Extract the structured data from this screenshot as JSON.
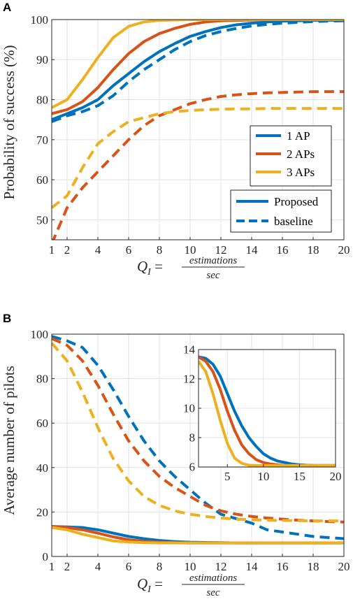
{
  "colors": {
    "ap1": "#0072BD",
    "ap2": "#D95319",
    "ap3": "#EDB120"
  },
  "chart_data": [
    {
      "panel": "A",
      "type": "line",
      "ylabel": "Probability of success (%)",
      "xlabel_prefix": "Q",
      "xlabel_subscript": "I",
      "xlabel_numerator": "estimations",
      "xlabel_denominator": "sec",
      "xlim": [
        1,
        20
      ],
      "ylim": [
        45,
        100
      ],
      "xticks": [
        1,
        2,
        4,
        6,
        8,
        10,
        12,
        14,
        16,
        18,
        20
      ],
      "yticks": [
        50,
        60,
        70,
        80,
        90,
        100
      ],
      "grid": true,
      "legend_colors": {
        "position": "lower-right",
        "entries": [
          "1 AP",
          "2 APs",
          "3 APs"
        ]
      },
      "legend_styles": {
        "position": "lower-right",
        "entries": [
          "Proposed",
          "baseline"
        ]
      },
      "x": [
        1,
        2,
        3,
        4,
        5,
        6,
        7,
        8,
        9,
        10,
        11,
        12,
        13,
        14,
        15,
        16,
        17,
        18,
        19,
        20
      ],
      "series": [
        {
          "name": "1 AP",
          "style": "solid",
          "color_key": "ap1",
          "values": [
            75.0,
            76.5,
            78.0,
            80.0,
            83.5,
            86.5,
            89.5,
            92.0,
            94.0,
            95.8,
            97.0,
            98.0,
            98.7,
            99.1,
            99.4,
            99.6,
            99.7,
            99.8,
            99.8,
            99.9
          ]
        },
        {
          "name": "2 APs",
          "style": "solid",
          "color_key": "ap2",
          "values": [
            76.5,
            77.5,
            79.5,
            83.0,
            87.5,
            91.5,
            94.5,
            96.5,
            97.8,
            98.8,
            99.4,
            99.7,
            99.8,
            99.9,
            100.0,
            100.0,
            100.0,
            100.0,
            100.0,
            100.0
          ]
        },
        {
          "name": "3 APs",
          "style": "solid",
          "color_key": "ap3",
          "values": [
            78.0,
            80.0,
            85.0,
            90.5,
            95.5,
            98.3,
            99.4,
            99.8,
            99.9,
            100.0,
            100.0,
            100.0,
            100.0,
            100.0,
            100.0,
            100.0,
            100.0,
            100.0,
            100.0,
            100.0
          ]
        },
        {
          "name": "1 AP baseline",
          "style": "dashed",
          "color_key": "ap1",
          "values": [
            74.5,
            76.0,
            77.0,
            78.5,
            81.0,
            84.5,
            87.5,
            90.0,
            92.5,
            94.5,
            96.0,
            97.0,
            97.8,
            98.4,
            98.8,
            99.1,
            99.3,
            99.5,
            99.6,
            99.7
          ]
        },
        {
          "name": "2 APs baseline",
          "style": "dashed",
          "color_key": "ap2",
          "values": [
            44.0,
            53.0,
            58.0,
            62.0,
            66.0,
            70.0,
            73.5,
            76.0,
            77.5,
            79.0,
            80.0,
            80.8,
            81.2,
            81.5,
            81.7,
            81.8,
            81.9,
            82.0,
            82.0,
            82.0
          ]
        },
        {
          "name": "3 APs baseline",
          "style": "dashed",
          "color_key": "ap3",
          "values": [
            53.0,
            56.0,
            63.0,
            69.0,
            72.0,
            74.5,
            75.5,
            76.5,
            77.0,
            77.3,
            77.5,
            77.6,
            77.7,
            77.7,
            77.8,
            77.8,
            77.8,
            77.8,
            77.8,
            77.8
          ]
        }
      ]
    },
    {
      "panel": "B",
      "type": "line",
      "ylabel": "Average number of pilots",
      "xlabel_prefix": "Q",
      "xlabel_subscript": "I",
      "xlabel_numerator": "estimations",
      "xlabel_denominator": "sec",
      "xlim": [
        1,
        20
      ],
      "ylim": [
        0,
        100
      ],
      "xticks": [
        1,
        2,
        4,
        6,
        8,
        10,
        12,
        14,
        16,
        18,
        20
      ],
      "yticks": [
        0,
        20,
        40,
        60,
        80,
        100
      ],
      "grid": true,
      "x": [
        1,
        2,
        3,
        4,
        5,
        6,
        7,
        8,
        9,
        10,
        11,
        12,
        13,
        14,
        15,
        16,
        17,
        18,
        19,
        20
      ],
      "series": [
        {
          "name": "1 AP",
          "style": "solid",
          "color_key": "ap1",
          "values": [
            13.5,
            13.3,
            13.0,
            12.0,
            10.5,
            9.0,
            8.0,
            7.2,
            6.7,
            6.4,
            6.3,
            6.2,
            6.1,
            6.1,
            6.1,
            6.1,
            6.1,
            6.1,
            6.1,
            6.1
          ]
        },
        {
          "name": "2 APs",
          "style": "solid",
          "color_key": "ap2",
          "values": [
            13.5,
            13.0,
            12.0,
            10.5,
            8.8,
            7.5,
            6.8,
            6.4,
            6.2,
            6.1,
            6.1,
            6.1,
            6.1,
            6.1,
            6.1,
            6.1,
            6.1,
            6.1,
            6.1,
            6.1
          ]
        },
        {
          "name": "3 APs",
          "style": "solid",
          "color_key": "ap3",
          "values": [
            13.0,
            12.0,
            10.0,
            8.5,
            7.0,
            6.5,
            6.2,
            6.1,
            6.1,
            6.1,
            6.1,
            6.1,
            6.1,
            6.1,
            6.1,
            6.1,
            6.1,
            6.1,
            6.1,
            6.1
          ]
        },
        {
          "name": "1 AP baseline",
          "style": "dashed",
          "color_key": "ap1",
          "values": [
            99.0,
            97.0,
            94.0,
            86.0,
            75.0,
            63.0,
            52.0,
            43.0,
            36.0,
            30.0,
            24.0,
            19.0,
            17.0,
            15.0,
            12.0,
            11.0,
            10.0,
            9.0,
            8.5,
            8.0
          ]
        },
        {
          "name": "2 APs baseline",
          "style": "dashed",
          "color_key": "ap2",
          "values": [
            98.0,
            95.0,
            88.0,
            77.0,
            64.0,
            52.0,
            43.0,
            36.0,
            31.0,
            27.0,
            23.0,
            20.5,
            19.0,
            18.0,
            17.3,
            16.8,
            16.3,
            16.0,
            15.7,
            15.5
          ]
        },
        {
          "name": "3 APs baseline",
          "style": "dashed",
          "color_key": "ap3",
          "values": [
            96.0,
            88.0,
            74.0,
            58.0,
            44.0,
            34.0,
            27.0,
            23.0,
            20.5,
            19.0,
            18.0,
            17.3,
            16.8,
            16.5,
            16.3,
            16.2,
            16.1,
            16.0,
            16.0,
            16.0
          ]
        }
      ],
      "inset": {
        "xlim": [
          1,
          20
        ],
        "ylim": [
          6,
          14
        ],
        "xticks": [
          5,
          10,
          15,
          20
        ],
        "yticks": [
          6,
          8,
          10,
          12,
          14
        ],
        "grid": true,
        "x": [
          1,
          2,
          3,
          4,
          5,
          6,
          7,
          8,
          9,
          10,
          11,
          12,
          13,
          14,
          15,
          16,
          17,
          18,
          19,
          20
        ],
        "series": [
          {
            "name": "1 AP",
            "color_key": "ap1",
            "values": [
              13.5,
              13.4,
              13.0,
              12.2,
              11.0,
              9.8,
              8.8,
              8.0,
              7.4,
              6.9,
              6.6,
              6.4,
              6.3,
              6.2,
              6.15,
              6.12,
              6.1,
              6.1,
              6.1,
              6.1
            ]
          },
          {
            "name": "2 APs",
            "color_key": "ap2",
            "values": [
              13.5,
              13.2,
              12.5,
              11.3,
              9.8,
              8.5,
              7.5,
              6.9,
              6.5,
              6.3,
              6.2,
              6.15,
              6.1,
              6.1,
              6.1,
              6.1,
              6.1,
              6.1,
              6.1,
              6.1
            ]
          },
          {
            "name": "3 APs",
            "color_key": "ap3",
            "values": [
              13.2,
              12.5,
              11.0,
              9.2,
              7.6,
              6.6,
              6.25,
              6.12,
              6.1,
              6.1,
              6.1,
              6.1,
              6.1,
              6.1,
              6.1,
              6.1,
              6.1,
              6.1,
              6.1,
              6.1
            ]
          }
        ]
      }
    }
  ]
}
